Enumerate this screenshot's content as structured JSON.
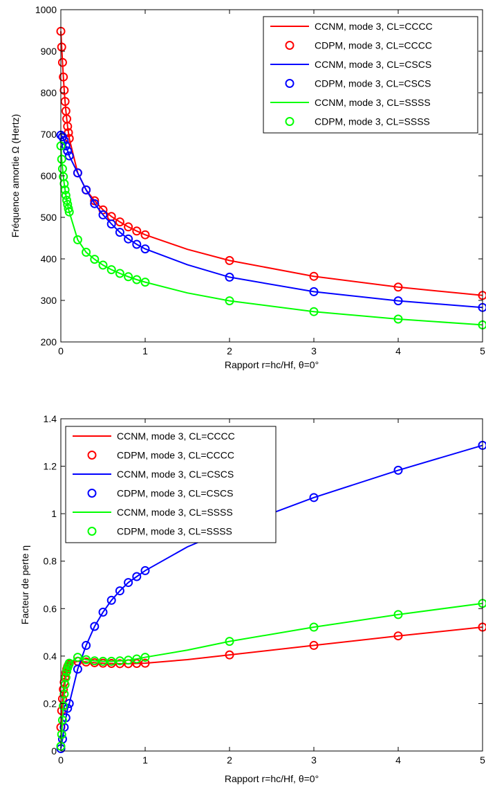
{
  "chart_data": [
    {
      "type": "line",
      "xlabel": "Rapport r=hc/Hf, θ=0°",
      "ylabel": "Fréquence amortie Ω (Hertz)",
      "xlim": [
        0,
        5
      ],
      "ylim": [
        200,
        1000
      ],
      "xticks": [
        0,
        1,
        2,
        3,
        4,
        5
      ],
      "yticks": [
        200,
        300,
        400,
        500,
        600,
        700,
        800,
        900,
        1000
      ],
      "grid": false,
      "legend_position": "top-right",
      "series": [
        {
          "name": "CCNM, mode 3, CL=CCCC",
          "style": "line",
          "color": "#ff0000",
          "x": [
            0.0,
            0.01,
            0.02,
            0.03,
            0.04,
            0.05,
            0.06,
            0.07,
            0.08,
            0.09,
            0.1,
            0.2,
            0.3,
            0.4,
            0.5,
            0.6,
            0.7,
            0.8,
            0.9,
            1.0,
            1.5,
            2,
            3,
            4,
            5
          ],
          "y": [
            948,
            910,
            873,
            838,
            806,
            779,
            756,
            737,
            719,
            704,
            690,
            607,
            566,
            540,
            518,
            502,
            489,
            477,
            467,
            458,
            423,
            396,
            358,
            332,
            312
          ]
        },
        {
          "name": "CDPM, mode 3, CL=CCCC",
          "style": "markers",
          "color": "#ff0000",
          "x": [
            0.0,
            0.01,
            0.02,
            0.03,
            0.04,
            0.05,
            0.06,
            0.07,
            0.08,
            0.09,
            0.1,
            0.2,
            0.3,
            0.4,
            0.5,
            0.6,
            0.7,
            0.8,
            0.9,
            1.0,
            2,
            3,
            4,
            5
          ],
          "y": [
            948,
            910,
            873,
            838,
            806,
            779,
            756,
            737,
            719,
            704,
            690,
            607,
            566,
            540,
            518,
            502,
            489,
            477,
            467,
            458,
            396,
            358,
            332,
            312
          ]
        },
        {
          "name": "CCNM, mode 3, CL=CSCS",
          "style": "line",
          "color": "#0000ff",
          "x": [
            0.0,
            0.02,
            0.04,
            0.06,
            0.08,
            0.1,
            0.2,
            0.3,
            0.4,
            0.5,
            0.6,
            0.7,
            0.8,
            0.9,
            1.0,
            1.5,
            2,
            3,
            4,
            5
          ],
          "y": [
            698,
            694,
            685,
            672,
            660,
            648,
            607,
            566,
            533,
            506,
            484,
            464,
            448,
            435,
            424,
            386,
            356,
            321,
            299,
            283
          ]
        },
        {
          "name": "CDPM, mode 3, CL=CSCS",
          "style": "markers",
          "color": "#0000ff",
          "x": [
            0.0,
            0.02,
            0.04,
            0.06,
            0.08,
            0.1,
            0.2,
            0.3,
            0.4,
            0.5,
            0.6,
            0.7,
            0.8,
            0.9,
            1.0,
            2,
            3,
            4,
            5
          ],
          "y": [
            698,
            694,
            685,
            672,
            660,
            648,
            607,
            566,
            533,
            506,
            484,
            464,
            448,
            435,
            424,
            356,
            321,
            299,
            283
          ]
        },
        {
          "name": "CCNM, mode 3, CL=SSSS",
          "style": "line",
          "color": "#00ff00",
          "x": [
            0.0,
            0.01,
            0.02,
            0.03,
            0.04,
            0.05,
            0.06,
            0.07,
            0.08,
            0.09,
            0.1,
            0.2,
            0.3,
            0.4,
            0.5,
            0.6,
            0.7,
            0.8,
            0.9,
            1.0,
            1.5,
            2,
            3,
            4,
            5
          ],
          "y": [
            672,
            640,
            617,
            598,
            581,
            566,
            553,
            541,
            531,
            521,
            513,
            446,
            416,
            399,
            385,
            374,
            365,
            357,
            350,
            344,
            318,
            299,
            273,
            255,
            241
          ]
        },
        {
          "name": "CDPM, mode 3, CL=SSSS",
          "style": "markers",
          "color": "#00ff00",
          "x": [
            0.0,
            0.01,
            0.02,
            0.03,
            0.04,
            0.05,
            0.06,
            0.07,
            0.08,
            0.09,
            0.1,
            0.2,
            0.3,
            0.4,
            0.5,
            0.6,
            0.7,
            0.8,
            0.9,
            1.0,
            2,
            3,
            4,
            5
          ],
          "y": [
            672,
            640,
            617,
            598,
            581,
            566,
            553,
            541,
            531,
            521,
            513,
            446,
            416,
            399,
            385,
            374,
            365,
            357,
            350,
            344,
            299,
            273,
            255,
            241
          ]
        }
      ]
    },
    {
      "type": "line",
      "xlabel": "Rapport r=hc/Hf, θ=0°",
      "ylabel": "Facteur de perte η",
      "xlim": [
        0,
        5
      ],
      "ylim": [
        0,
        1.4
      ],
      "xticks": [
        0,
        1,
        2,
        3,
        4,
        5
      ],
      "yticks": [
        0,
        0.2,
        0.4,
        0.6,
        0.8,
        1,
        1.2,
        1.4
      ],
      "grid": false,
      "legend_position": "top-left",
      "series": [
        {
          "name": "CCNM, mode 3, CL=CCCC",
          "style": "line",
          "color": "#ff0000",
          "x": [
            0.0,
            0.01,
            0.02,
            0.03,
            0.04,
            0.05,
            0.06,
            0.07,
            0.08,
            0.09,
            0.1,
            0.2,
            0.3,
            0.4,
            0.5,
            0.6,
            0.7,
            0.8,
            0.9,
            1.0,
            1.5,
            2,
            3,
            4,
            5
          ],
          "y": [
            0.1,
            0.17,
            0.22,
            0.26,
            0.29,
            0.31,
            0.33,
            0.345,
            0.355,
            0.362,
            0.368,
            0.378,
            0.375,
            0.372,
            0.37,
            0.369,
            0.368,
            0.368,
            0.369,
            0.37,
            0.385,
            0.405,
            0.445,
            0.485,
            0.522
          ]
        },
        {
          "name": "CDPM, mode 3, CL=CCCC",
          "style": "markers",
          "color": "#ff0000",
          "x": [
            0.0,
            0.01,
            0.02,
            0.03,
            0.04,
            0.05,
            0.06,
            0.07,
            0.08,
            0.09,
            0.1,
            0.2,
            0.3,
            0.4,
            0.5,
            0.6,
            0.7,
            0.8,
            0.9,
            1.0,
            2,
            3,
            4,
            5
          ],
          "y": [
            0.1,
            0.17,
            0.22,
            0.26,
            0.29,
            0.31,
            0.33,
            0.345,
            0.355,
            0.362,
            0.368,
            0.378,
            0.375,
            0.372,
            0.37,
            0.369,
            0.368,
            0.368,
            0.369,
            0.37,
            0.405,
            0.445,
            0.485,
            0.522
          ]
        },
        {
          "name": "CCNM, mode 3, CL=CSCS",
          "style": "line",
          "color": "#0000ff",
          "x": [
            0.0,
            0.02,
            0.04,
            0.06,
            0.08,
            0.1,
            0.2,
            0.3,
            0.4,
            0.5,
            0.6,
            0.7,
            0.8,
            0.9,
            1.0,
            1.5,
            2,
            3,
            4,
            5
          ],
          "y": [
            0.01,
            0.05,
            0.1,
            0.14,
            0.18,
            0.2,
            0.345,
            0.445,
            0.525,
            0.585,
            0.635,
            0.675,
            0.71,
            0.735,
            0.76,
            0.86,
            0.935,
            1.068,
            1.183,
            1.288
          ]
        },
        {
          "name": "CDPM, mode 3, CL=CSCS",
          "style": "markers",
          "color": "#0000ff",
          "x": [
            0.0,
            0.02,
            0.04,
            0.06,
            0.08,
            0.1,
            0.2,
            0.3,
            0.4,
            0.5,
            0.6,
            0.7,
            0.8,
            0.9,
            1.0,
            3,
            4,
            5
          ],
          "y": [
            0.01,
            0.05,
            0.1,
            0.14,
            0.18,
            0.2,
            0.345,
            0.445,
            0.525,
            0.585,
            0.635,
            0.675,
            0.71,
            0.735,
            0.76,
            1.068,
            1.183,
            1.288
          ]
        },
        {
          "name": "CCNM, mode 3, CL=SSSS",
          "style": "line",
          "color": "#00ff00",
          "x": [
            0.0,
            0.01,
            0.02,
            0.03,
            0.04,
            0.05,
            0.06,
            0.07,
            0.08,
            0.09,
            0.1,
            0.2,
            0.3,
            0.4,
            0.5,
            0.6,
            0.7,
            0.8,
            0.9,
            1.0,
            1.5,
            2,
            3,
            4,
            5
          ],
          "y": [
            0.02,
            0.07,
            0.13,
            0.19,
            0.24,
            0.28,
            0.31,
            0.335,
            0.35,
            0.36,
            0.37,
            0.395,
            0.385,
            0.38,
            0.378,
            0.378,
            0.38,
            0.383,
            0.388,
            0.395,
            0.425,
            0.462,
            0.522,
            0.575,
            0.622
          ]
        },
        {
          "name": "CDPM, mode 3, CL=SSSS",
          "style": "markers",
          "color": "#00ff00",
          "x": [
            0.0,
            0.01,
            0.02,
            0.03,
            0.04,
            0.05,
            0.06,
            0.07,
            0.08,
            0.09,
            0.1,
            0.2,
            0.3,
            0.4,
            0.5,
            0.6,
            0.7,
            0.8,
            0.9,
            1.0,
            2,
            3,
            4,
            5
          ],
          "y": [
            0.02,
            0.07,
            0.13,
            0.19,
            0.24,
            0.28,
            0.31,
            0.335,
            0.35,
            0.36,
            0.37,
            0.395,
            0.385,
            0.38,
            0.378,
            0.378,
            0.38,
            0.383,
            0.388,
            0.395,
            0.462,
            0.522,
            0.575,
            0.622
          ]
        }
      ]
    }
  ]
}
